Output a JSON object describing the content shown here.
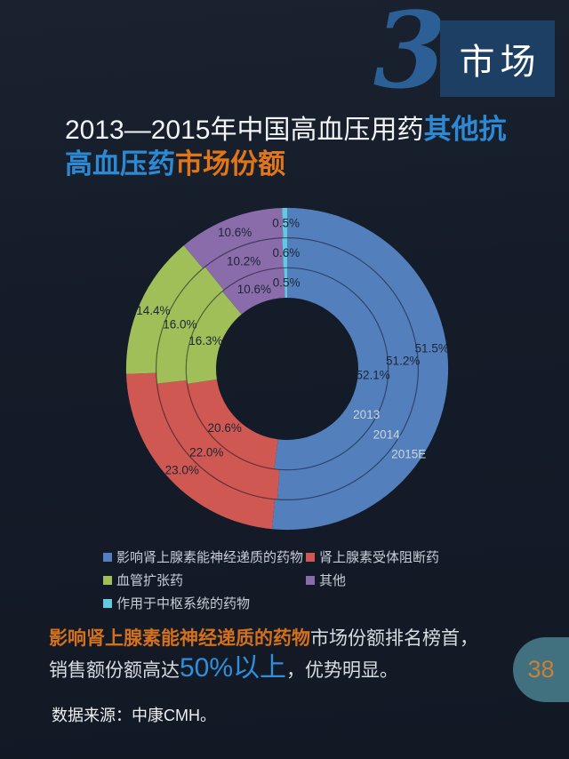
{
  "header": {
    "section_number": "3",
    "section_label": "市场"
  },
  "title": {
    "line1_regular": "2013—2015年中国高血压用药",
    "line1_accent": "其他抗",
    "line2_accent": "高血压药",
    "line2_highlight": "市场份额"
  },
  "chart_data": {
    "type": "donut",
    "title": "2013—2015年中国高血压用药其他抗高血压药市场份额",
    "unit": "%",
    "start_angle": "12-oclock, clockwise",
    "ring_order": "inner-to-outer",
    "legend_position": "bottom-left, two columns",
    "categories": [
      "影响肾上腺素能神经递质的药物",
      "肾上腺素受体阻断药",
      "血管扩张药",
      "其他",
      "作用于中枢系统的药物"
    ],
    "colors": [
      "#5380bd",
      "#cf5853",
      "#a0bf58",
      "#8a6cab",
      "#62c9e0"
    ],
    "rings": [
      {
        "name": "2013",
        "values": [
          52.1,
          20.6,
          16.3,
          10.6,
          0.5
        ]
      },
      {
        "name": "2014",
        "values": [
          51.2,
          22.0,
          16.0,
          10.2,
          0.6
        ]
      },
      {
        "name": "2015E",
        "values": [
          51.5,
          23.0,
          14.4,
          10.6,
          0.5
        ]
      }
    ]
  },
  "footer": {
    "line1_highlight": "影响肾上腺素能神经递质的药物",
    "line1_rest": "市场份额排名榜首，",
    "line2_pre": "销售额份额高达",
    "line2_big": "50%以上",
    "line2_post": "，优势明显。"
  },
  "source": {
    "text": "数据来源：中康CMH。"
  },
  "page": {
    "number": "38"
  }
}
